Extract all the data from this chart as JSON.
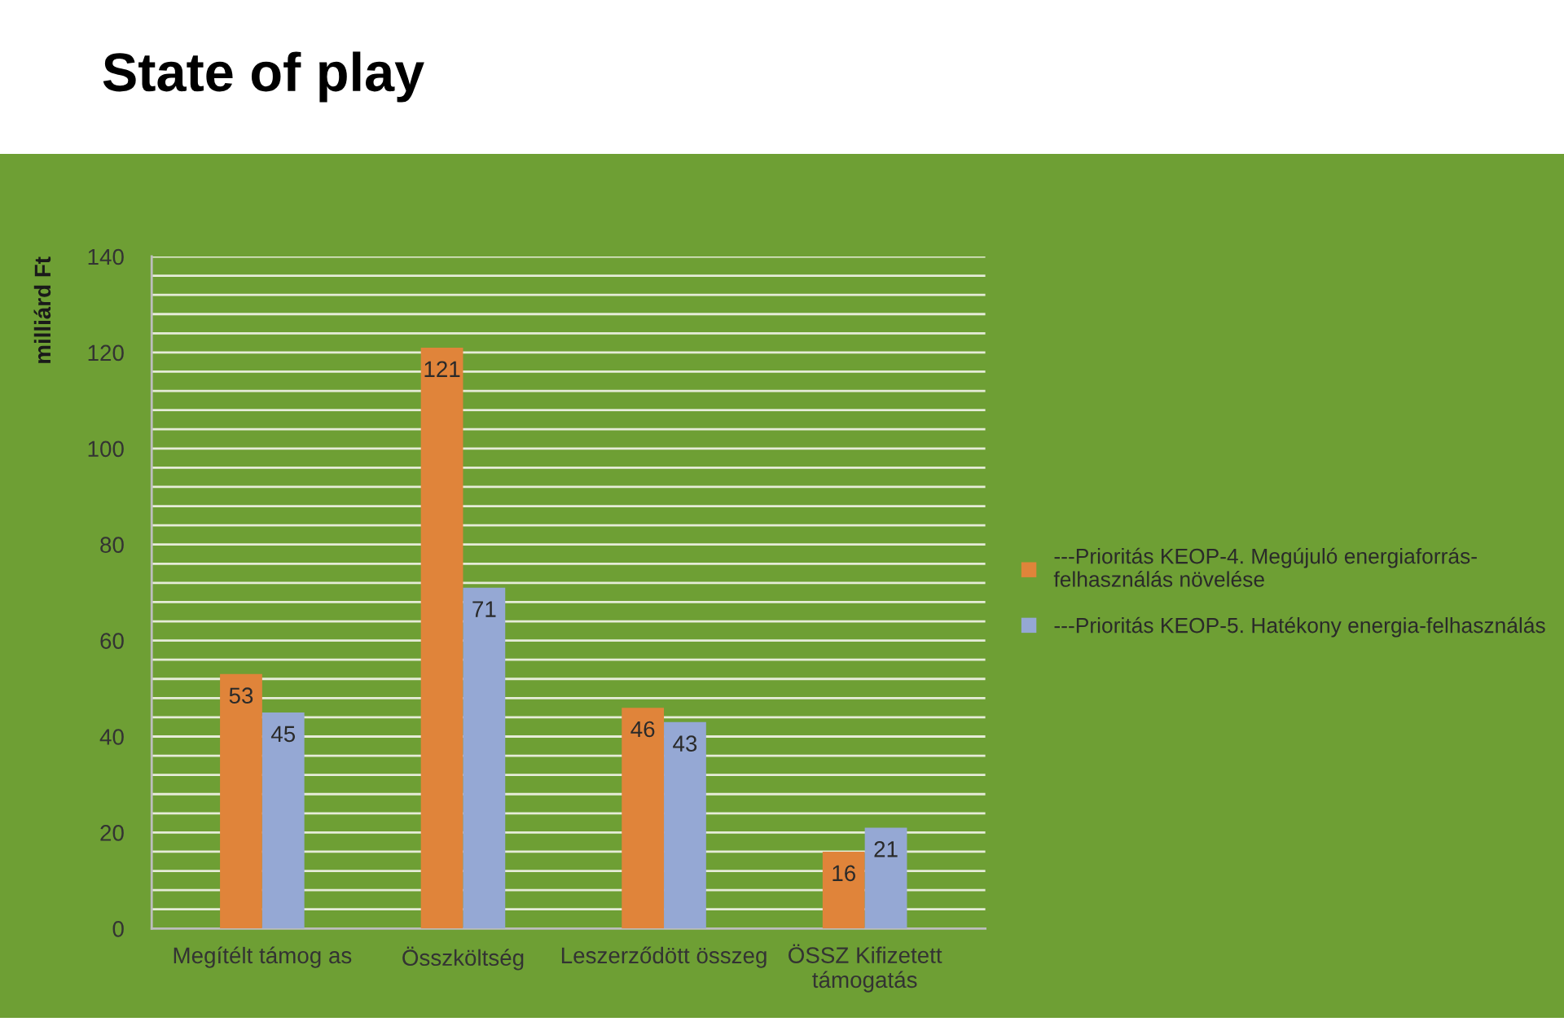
{
  "chart_data": {
    "type": "bar",
    "title": "State of play",
    "ylabel": "milliárd Ft",
    "categories": [
      "Megítélt támog as",
      "Összköltség",
      "Leszerződött összeg",
      "ÖSSZ Kifizetett támogatás"
    ],
    "series": [
      {
        "name": "---Prioritás KEOP-4. Megújuló energiaforrás-felhasználás növelése",
        "color": "#e0843a",
        "values": [
          53,
          121,
          46,
          16
        ]
      },
      {
        "name": "---Prioritás KEOP-5. Hatékony energia-felhasználás",
        "color": "#95a8d4",
        "values": [
          45,
          71,
          43,
          21
        ]
      }
    ],
    "ylim": [
      0,
      140
    ],
    "yticks": [
      0,
      {
        "value": 4,
        "label": null
      },
      {
        "value": 8,
        "label": null
      },
      {
        "value": 12,
        "label": null
      },
      {
        "value": 16,
        "label": null
      },
      20,
      {
        "value": 24,
        "label": null
      },
      {
        "value": 28,
        "label": null
      },
      {
        "value": 32,
        "label": null
      },
      {
        "value": 36,
        "label": null
      },
      40,
      {
        "value": 44,
        "label": null
      },
      {
        "value": 48,
        "label": null
      },
      {
        "value": 52,
        "label": null
      },
      {
        "value": 56,
        "label": null
      },
      60,
      {
        "value": 64,
        "label": null
      },
      {
        "value": 68,
        "label": null
      },
      {
        "value": 72,
        "label": null
      },
      {
        "value": 76,
        "label": null
      },
      80,
      {
        "value": 84,
        "label": null
      },
      {
        "value": 88,
        "label": null
      },
      {
        "value": 92,
        "label": null
      },
      {
        "value": 96,
        "label": null
      },
      100,
      {
        "value": 104,
        "label": null
      },
      {
        "value": 108,
        "label": null
      },
      {
        "value": 112,
        "label": null
      },
      {
        "value": 116,
        "label": null
      },
      120,
      {
        "value": 124,
        "label": null
      },
      {
        "value": 128,
        "label": null
      },
      {
        "value": 132,
        "label": null
      },
      {
        "value": 136,
        "label": null
      },
      140
    ],
    "grid": "y",
    "legend": "right",
    "data_labels": true
  }
}
